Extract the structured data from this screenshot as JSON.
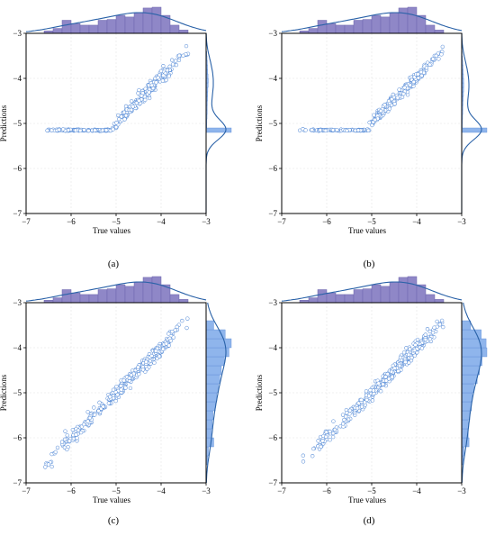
{
  "chart_data": [
    {
      "type": "scatter",
      "panel_label": "(a)",
      "xlabel": "True values",
      "ylabel": "Predictions",
      "xlim": [
        -7,
        -3
      ],
      "ylim": [
        -7,
        -3
      ],
      "xticks": [
        -7,
        -6,
        -5,
        -4,
        -3
      ],
      "yticks": [
        -3,
        -4,
        -5,
        -6,
        -7
      ],
      "marginal_histograms": true,
      "kde_curves": true,
      "points": {
        "pattern": "floor",
        "x_range": [
          -6.72,
          -3.35
        ],
        "floor": -5.15,
        "knee": -5.1,
        "spread": 0.07,
        "count": 360
      },
      "x_hist": {
        "bins": [
          -6.6,
          -6.4,
          -6.2,
          -6.0,
          -5.8,
          -5.6,
          -5.4,
          -5.2,
          -5.0,
          -4.8,
          -4.6,
          -4.4,
          -4.2,
          -4.0,
          -3.8,
          -3.6
        ],
        "counts": [
          3,
          6,
          16,
          12,
          10,
          10,
          16,
          17,
          22,
          20,
          25,
          31,
          32,
          22,
          10,
          4
        ]
      },
      "y_hist": {
        "bins": [
          -5.2,
          -5.1,
          -5.0,
          -4.9,
          -4.8,
          -4.7,
          -4.6,
          -4.5,
          -4.4,
          -4.3,
          -4.2,
          -4.1,
          -4.0,
          -3.9,
          -3.8,
          -3.7,
          -3.6,
          -3.5
        ],
        "counts": [
          160,
          4,
          5,
          6,
          7,
          7,
          8,
          9,
          10,
          11,
          13,
          14,
          12,
          10,
          9,
          8,
          6,
          4
        ]
      }
    },
    {
      "type": "scatter",
      "panel_label": "(b)",
      "xlabel": "True values",
      "ylabel": "Predictions",
      "xlim": [
        -7,
        -3
      ],
      "ylim": [
        -7,
        -3
      ],
      "xticks": [
        -7,
        -6,
        -5,
        -4,
        -3
      ],
      "yticks": [
        -3,
        -4,
        -5,
        -6,
        -7
      ],
      "marginal_histograms": true,
      "kde_curves": true,
      "points": {
        "pattern": "floor",
        "x_range": [
          -6.72,
          -3.35
        ],
        "floor": -5.15,
        "knee": -5.05,
        "spread": 0.06,
        "count": 360
      },
      "x_hist": {
        "bins": [
          -6.6,
          -6.4,
          -6.2,
          -6.0,
          -5.8,
          -5.6,
          -5.4,
          -5.2,
          -5.0,
          -4.8,
          -4.6,
          -4.4,
          -4.2,
          -4.0,
          -3.8,
          -3.6
        ],
        "counts": [
          3,
          6,
          16,
          12,
          10,
          10,
          16,
          17,
          22,
          20,
          25,
          31,
          32,
          22,
          10,
          4
        ]
      },
      "y_hist": {
        "bins": [
          -5.2,
          -5.1,
          -5.0,
          -4.9,
          -4.8,
          -4.7,
          -4.6,
          -4.5,
          -4.4,
          -4.3,
          -4.2,
          -4.1,
          -4.0,
          -3.9,
          -3.8,
          -3.7,
          -3.6,
          -3.5
        ],
        "counts": [
          170,
          4,
          5,
          6,
          7,
          8,
          9,
          10,
          12,
          13,
          14,
          13,
          12,
          10,
          9,
          7,
          5,
          3
        ]
      }
    },
    {
      "type": "scatter",
      "panel_label": "(c)",
      "xlabel": "True values",
      "ylabel": "Predictions",
      "xlim": [
        -7,
        -3
      ],
      "ylim": [
        -7,
        -3
      ],
      "xticks": [
        -7,
        -6,
        -5,
        -4,
        -3
      ],
      "yticks": [
        -3,
        -4,
        -5,
        -6,
        -7
      ],
      "marginal_histograms": true,
      "kde_curves": true,
      "points": {
        "pattern": "diagonal",
        "x_range": [
          -6.72,
          -3.35
        ],
        "spread": 0.08,
        "count": 360
      },
      "x_hist": {
        "bins": [
          -6.6,
          -6.4,
          -6.2,
          -6.0,
          -5.8,
          -5.6,
          -5.4,
          -5.2,
          -5.0,
          -4.8,
          -4.6,
          -4.4,
          -4.2,
          -4.0,
          -3.8,
          -3.6
        ],
        "counts": [
          3,
          6,
          16,
          12,
          10,
          10,
          16,
          17,
          22,
          20,
          25,
          31,
          32,
          22,
          10,
          4
        ]
      },
      "y_hist": {
        "bins": [
          -6.6,
          -6.4,
          -6.2,
          -6.0,
          -5.8,
          -5.6,
          -5.4,
          -5.2,
          -5.0,
          -4.8,
          -4.6,
          -4.4,
          -4.2,
          -4.0,
          -3.8,
          -3.6
        ],
        "counts": [
          2,
          3,
          10,
          7,
          8,
          9,
          12,
          14,
          16,
          18,
          20,
          24,
          30,
          33,
          25,
          10
        ]
      }
    },
    {
      "type": "scatter",
      "panel_label": "(d)",
      "xlabel": "True values",
      "ylabel": "Predictions",
      "xlim": [
        -7,
        -3
      ],
      "ylim": [
        -7,
        -3
      ],
      "xticks": [
        -7,
        -6,
        -5,
        -4,
        -3
      ],
      "yticks": [
        -3,
        -4,
        -5,
        -6,
        -7
      ],
      "marginal_histograms": true,
      "kde_curves": true,
      "points": {
        "pattern": "diagonal",
        "x_range": [
          -6.72,
          -3.35
        ],
        "spread": 0.085,
        "count": 360
      },
      "x_hist": {
        "bins": [
          -6.6,
          -6.4,
          -6.2,
          -6.0,
          -5.8,
          -5.6,
          -5.4,
          -5.2,
          -5.0,
          -4.8,
          -4.6,
          -4.4,
          -4.2,
          -4.0,
          -3.8,
          -3.6
        ],
        "counts": [
          3,
          6,
          16,
          12,
          10,
          10,
          16,
          17,
          22,
          20,
          25,
          31,
          32,
          22,
          10,
          4
        ]
      },
      "y_hist": {
        "bins": [
          -6.6,
          -6.4,
          -6.2,
          -6.0,
          -5.8,
          -5.6,
          -5.4,
          -5.2,
          -5.0,
          -4.8,
          -4.6,
          -4.4,
          -4.2,
          -4.0,
          -3.8,
          -3.6
        ],
        "counts": [
          2,
          3,
          9,
          8,
          8,
          10,
          12,
          13,
          15,
          19,
          22,
          25,
          31,
          30,
          24,
          11
        ]
      }
    }
  ],
  "colors": {
    "top_hist_fill": "#8f87c7",
    "top_hist_edge": "#6d66ad",
    "right_hist_fill": "#8fb5ec",
    "right_hist_edge": "#5f8fd8",
    "kde_curve": "#2a62a8",
    "marker_edge": "#5a8ed8",
    "marker_fill": "#ffffff",
    "grid": "#e4e4e4",
    "axis": "#000000"
  }
}
